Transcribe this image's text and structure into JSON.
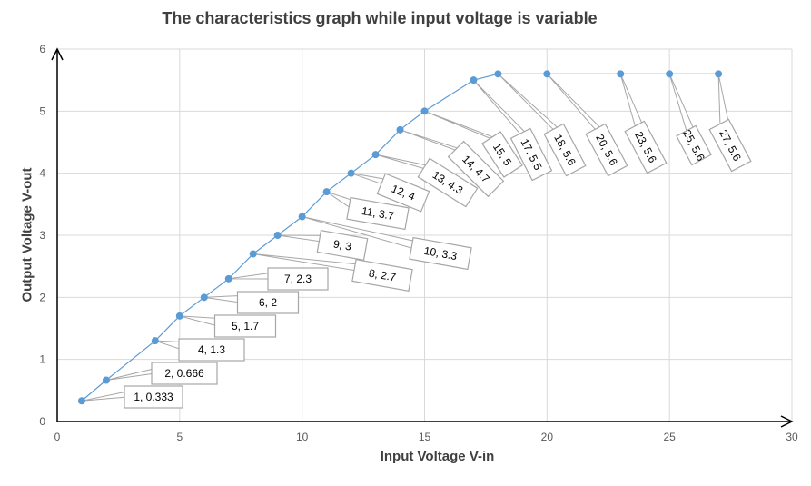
{
  "chart_data": {
    "type": "scatter",
    "title": "The characteristics graph while input voltage is variable",
    "xlabel": "Input Voltage V-in",
    "ylabel": "Output Voltage V-out",
    "xlim": [
      0,
      30
    ],
    "ylim": [
      0,
      6
    ],
    "xticks": [
      "0",
      "5",
      "10",
      "15",
      "20",
      "25",
      "30"
    ],
    "yticks": [
      "0",
      "1",
      "2",
      "3",
      "4",
      "5",
      "6"
    ],
    "grid": true,
    "series": [
      {
        "x": [
          1,
          2,
          4,
          5,
          6,
          7,
          8,
          9,
          10,
          11,
          12,
          13,
          14,
          15,
          17,
          18,
          20,
          23,
          25,
          27
        ],
        "y": [
          0.333,
          0.666,
          1.3,
          1.7,
          2,
          2.3,
          2.7,
          3,
          3.3,
          3.7,
          4,
          4.3,
          4.7,
          5,
          5.5,
          5.6,
          5.6,
          5.6,
          5.6,
          5.6
        ],
        "labels": [
          "1, 0.333",
          "2, 0.666",
          "4, 1.3",
          "5, 1.7",
          "6, 2",
          "7, 2.3",
          "8, 2.7",
          "9, 3",
          "10, 3.3",
          "11, 3.7",
          "12, 4",
          "13, 4.3",
          "14, 4.7",
          "15, 5",
          "17, 5.5",
          "18, 5.6",
          "20, 5.6",
          "23, 5.6",
          "25, 5.6",
          "27, 5.6"
        ]
      }
    ],
    "colors": {
      "series": "#5B9BD5",
      "grid": "#D9D9D9",
      "axis": "#000000",
      "callout": "#A6A6A6"
    }
  }
}
